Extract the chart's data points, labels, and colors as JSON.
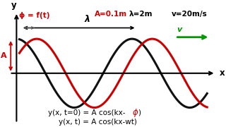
{
  "bg_color": "#ffffff",
  "black_wave_color": "#111111",
  "red_wave_color": "#cc0000",
  "green_color": "#009900",
  "amplitude": 1.0,
  "k": 3.14159265,
  "phase_shift": 1.1,
  "x_start": 0.05,
  "x_end": 3.3,
  "xlim": [
    -0.18,
    3.55
  ],
  "ylim": [
    -1.55,
    1.85
  ],
  "phi_label": "ϕ = f(t)",
  "lambda_label": "λ",
  "A_label": "A",
  "param_A": "A=0.1m",
  "param_lam": "λ=2m",
  "param_v": "v=20m/s",
  "v_label": "v",
  "x_label": "x",
  "y_label": "y",
  "eq1_pre": "y(x, t=0) = A cos(kx-",
  "eq1_phi": "ϕ",
  "eq1_post": ")",
  "eq2": "y(x, t) = A cos(kx-wt)"
}
